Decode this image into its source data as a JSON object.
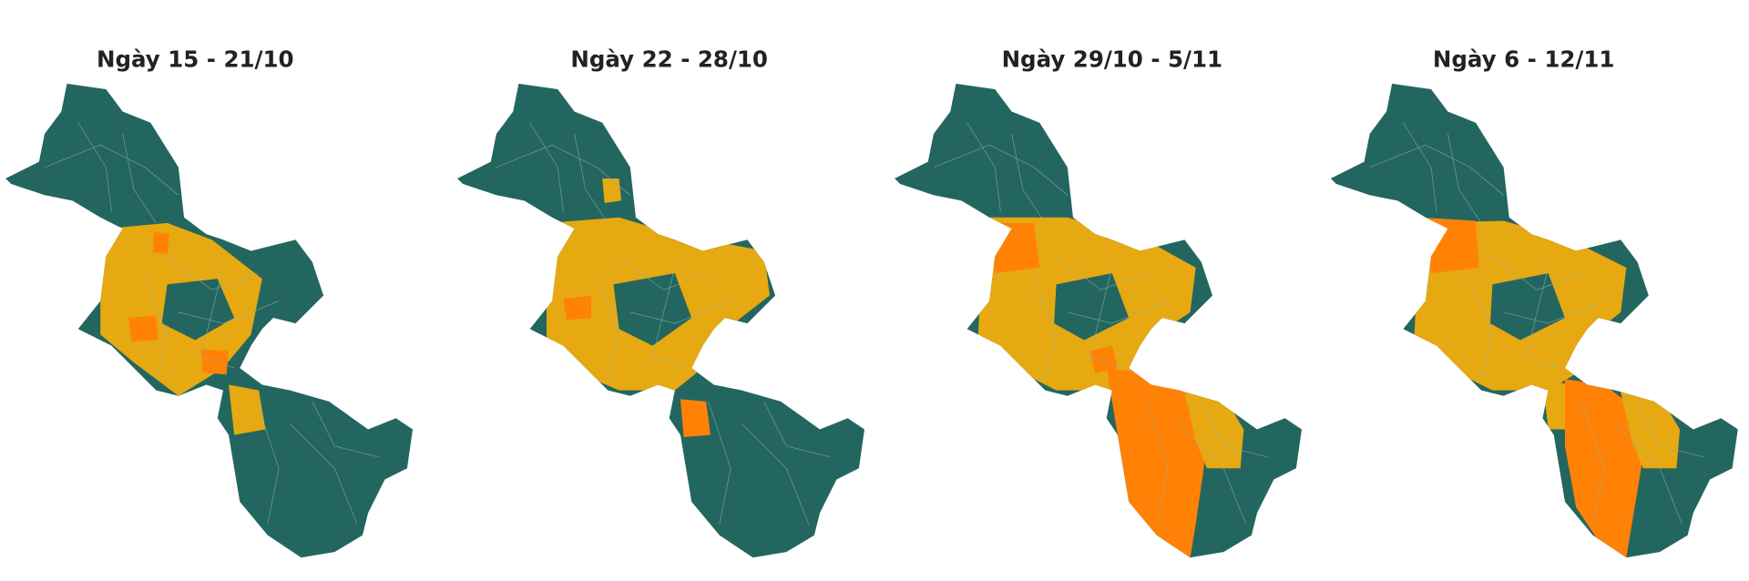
{
  "panels": [
    {
      "title": "Ngày 15 - 21/10"
    },
    {
      "title": "Ngày 22 - 28/10"
    },
    {
      "title": "Ngày 29/10 - 5/11"
    },
    {
      "title": "Ngày 6 - 12/11"
    }
  ]
}
